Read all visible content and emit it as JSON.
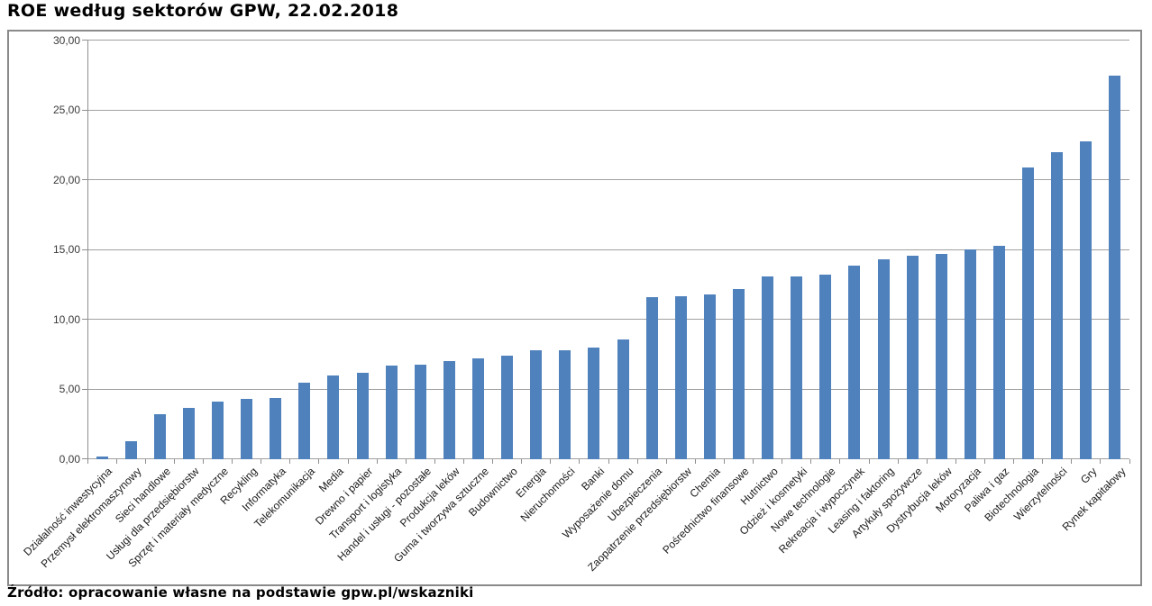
{
  "title": "ROE według sektorów GPW, 22.02.2018",
  "source": "Źródło: opracowanie własne na podstawie gpw.pl/wskazniki",
  "colors": {
    "bar": "#4f81bd",
    "gridline": "#a0a0a0",
    "axis": "#8f8f8f",
    "frame_border": "#8a8a8a",
    "title_text": "#000000",
    "axis_text": "#3a3a3a",
    "category_text": "#1a1a1a",
    "background": "#ffffff"
  },
  "chart_data": {
    "type": "bar",
    "title": "ROE według sektorów GPW, 22.02.2018",
    "xlabel": "",
    "ylabel": "",
    "ylim": [
      0,
      30
    ],
    "ytick_step": 5,
    "ytick_labels": [
      "0,00",
      "5,00",
      "10,00",
      "15,00",
      "20,00",
      "25,00",
      "30,00"
    ],
    "grid": true,
    "legend": false,
    "bar_color": "#4f81bd",
    "categories": [
      "Działalność inwestycyjna",
      "Przemysł elektromaszynowy",
      "Sieci handlowe",
      "Usługi dla przedsiębiorstw",
      "Sprzęt i materiały medyczne",
      "Recykling",
      "Informatyka",
      "Telekomunikacja",
      "Media",
      "Drewno i papier",
      "Transport i logistyka",
      "Handel i usługi - pozostałe",
      "Produkcja leków",
      "Guma i tworzywa sztuczne",
      "Budownictwo",
      "Energia",
      "Nieruchomości",
      "Banki",
      "Wyposażenie domu",
      "Ubezpieczenia",
      "Zaopatrzenie przedsiębiorstw",
      "Chemia",
      "Pośrednictwo finansowe",
      "Hutnictwo",
      "Odzież i kosmetyki",
      "Nowe technologie",
      "Rekreacja i wypoczynek",
      "Leasing i faktoring",
      "Artykuły spożywcze",
      "Dystrybucja leków",
      "Motoryzacja",
      "Paliwa i gaz",
      "Biotechnologia",
      "Wierzytelności",
      "Gry",
      "Rynek kapitałowy"
    ],
    "values": [
      0.2,
      1.3,
      3.2,
      3.7,
      4.1,
      4.3,
      4.4,
      5.5,
      6.0,
      6.2,
      6.7,
      6.8,
      7.0,
      7.2,
      7.4,
      7.8,
      7.8,
      8.0,
      8.6,
      11.6,
      11.7,
      11.8,
      12.2,
      13.1,
      13.1,
      13.2,
      13.9,
      14.3,
      14.6,
      14.7,
      15.0,
      15.3,
      20.9,
      22.0,
      22.8,
      27.5
    ]
  }
}
